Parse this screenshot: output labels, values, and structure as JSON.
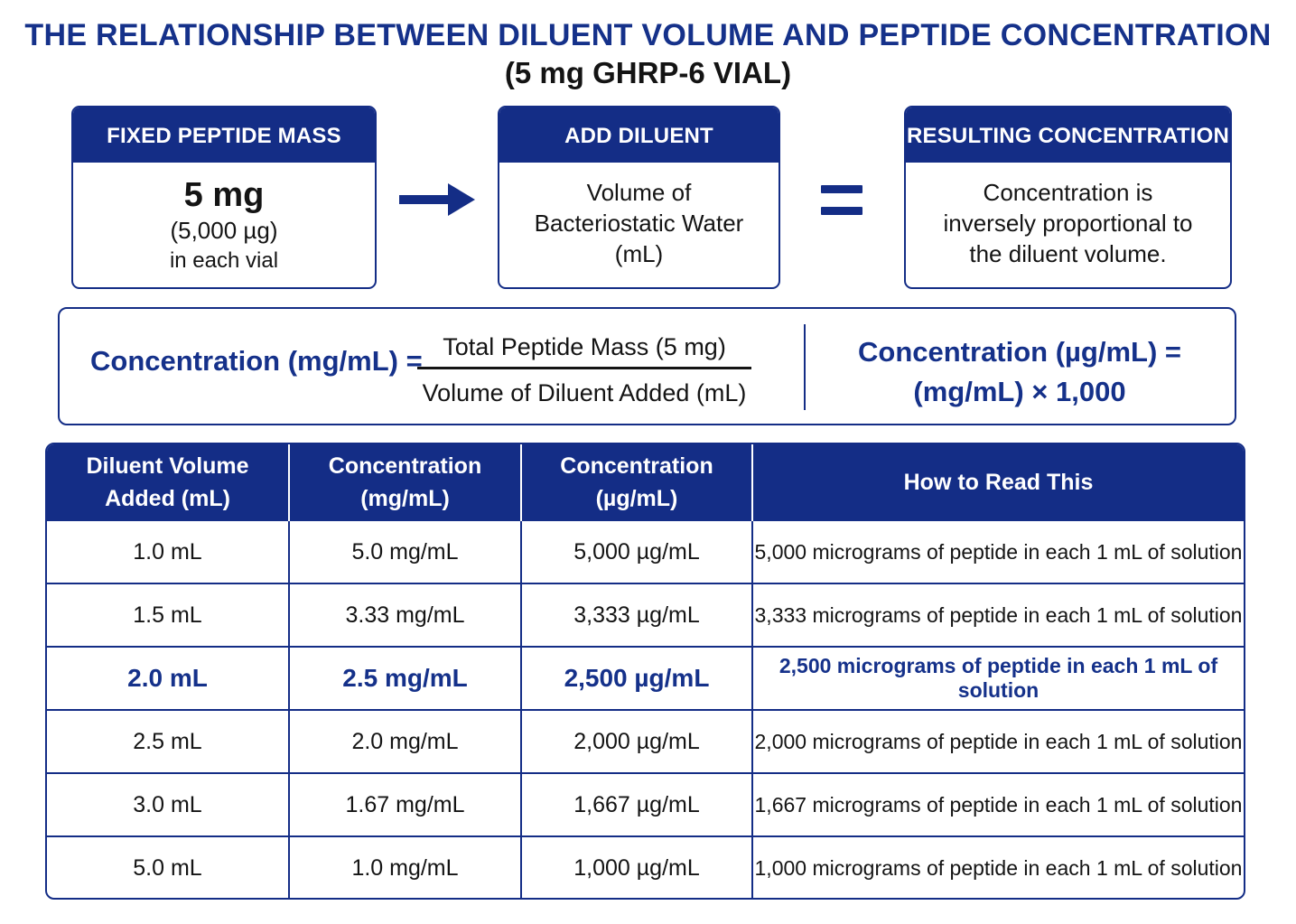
{
  "header": {
    "title": "THE RELATIONSHIP BETWEEN DILUENT VOLUME AND PEPTIDE CONCENTRATION",
    "subtitle": "(5 mg GHRP-6 VIAL)"
  },
  "cards": {
    "fixed": {
      "heading": "FIXED PEPTIDE MASS",
      "amount": "5 mg",
      "micrograms": "(5,000 µg)",
      "note": "in each vial"
    },
    "diluent": {
      "heading": "ADD DILUENT",
      "line1": "Volume of",
      "line2": "Bacteriostatic Water",
      "line3": "(mL)"
    },
    "result": {
      "heading": "RESULTING CONCENTRATION",
      "line1": "Concentration is",
      "line2": "inversely proportional to",
      "line3": "the diluent volume."
    }
  },
  "icons": {
    "arrow": "arrow-right-icon",
    "equals": "equals-icon"
  },
  "formula": {
    "left_label": "Concentration (mg/mL) =",
    "numerator": "Total Peptide Mass (5 mg)",
    "denominator": "Volume of Diluent Added (mL)",
    "right_line1": "Concentration (µg/mL) =",
    "right_line2": "(mg/mL) × 1,000"
  },
  "table": {
    "headers": [
      {
        "line1": "Diluent Volume",
        "line2": "Added (mL)"
      },
      {
        "line1": "Concentration",
        "line2": "(mg/mL)"
      },
      {
        "line1": "Concentration",
        "line2": "(µg/mL)"
      },
      {
        "line1": "How to Read This",
        "line2": ""
      }
    ],
    "rows": [
      [
        "1.0 mL",
        "5.0 mg/mL",
        "5,000 µg/mL",
        "5,000 micrograms of peptide in each 1 mL of solution"
      ],
      [
        "1.5 mL",
        "3.33 mg/mL",
        "3,333 µg/mL",
        "3,333 micrograms of peptide in each 1 mL of solution"
      ],
      [
        "2.0 mL",
        "2.5 mg/mL",
        "2,500 µg/mL",
        "2,500 micrograms of peptide in each 1 mL of solution"
      ],
      [
        "2.5 mL",
        "2.0 mg/mL",
        "2,000 µg/mL",
        "2,000 micrograms of peptide in each 1 mL of solution"
      ],
      [
        "3.0 mL",
        "1.67 mg/mL",
        "1,667 µg/mL",
        "1,667 micrograms of peptide in each 1 mL of solution"
      ],
      [
        "5.0 mL",
        "1.0 mg/mL",
        "1,000 µg/mL",
        "1,000 micrograms of peptide in each 1 mL of solution"
      ]
    ],
    "highlighted_row": 2
  },
  "colors": {
    "navy": "#142d86",
    "title_blue": "#15318a",
    "text": "#141414"
  }
}
